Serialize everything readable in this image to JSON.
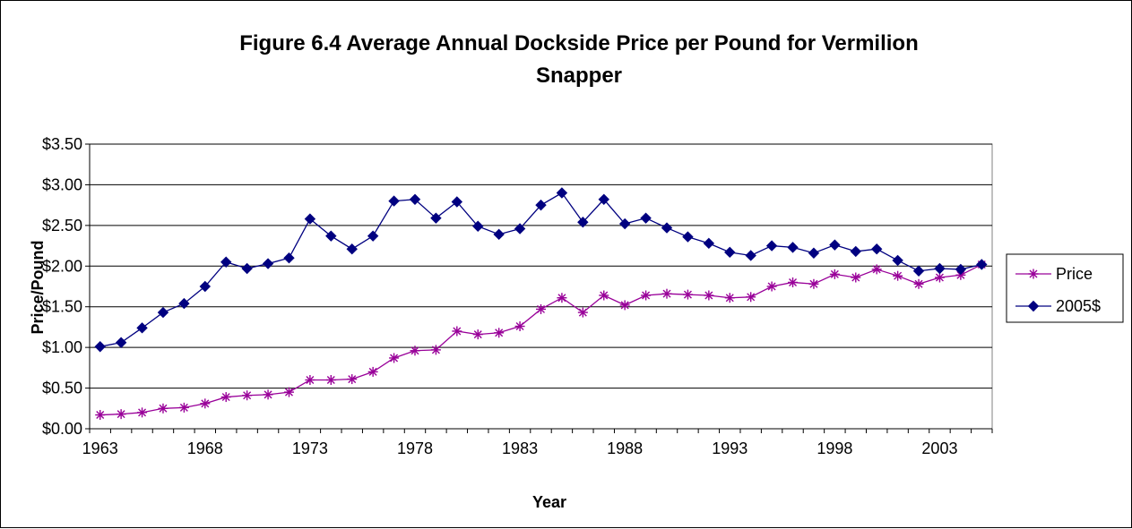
{
  "chart_data": {
    "type": "line",
    "title_line1": "Figure 6.4  Average Annual Dockside Price per Pound for Vermilion",
    "title_line2": "Snapper",
    "xlabel": "Year",
    "ylabel": "Price/Pound",
    "x_tick_labels": [
      "1963",
      "1968",
      "1973",
      "1978",
      "1983",
      "1988",
      "1993",
      "1998",
      "2003"
    ],
    "y_tick_labels": [
      "$0.00",
      "$0.50",
      "$1.00",
      "$1.50",
      "$2.00",
      "$2.50",
      "$3.00",
      "$3.50"
    ],
    "ylim": [
      0,
      3.5
    ],
    "xlim": [
      1963,
      2005
    ],
    "grid": "horizontal",
    "legend_position": "right",
    "x": [
      1963,
      1964,
      1965,
      1966,
      1967,
      1968,
      1969,
      1970,
      1971,
      1972,
      1973,
      1974,
      1975,
      1976,
      1977,
      1978,
      1979,
      1980,
      1981,
      1982,
      1983,
      1984,
      1985,
      1986,
      1987,
      1988,
      1989,
      1990,
      1991,
      1992,
      1993,
      1994,
      1995,
      1996,
      1997,
      1998,
      1999,
      2000,
      2001,
      2002,
      2003,
      2004,
      2005
    ],
    "series": [
      {
        "name": "Price",
        "color": "#990099",
        "marker": "asterisk",
        "values": [
          0.17,
          0.18,
          0.2,
          0.25,
          0.26,
          0.31,
          0.39,
          0.41,
          0.42,
          0.45,
          0.6,
          0.6,
          0.61,
          0.7,
          0.87,
          0.96,
          0.97,
          1.2,
          1.16,
          1.18,
          1.26,
          1.47,
          1.61,
          1.43,
          1.64,
          1.52,
          1.64,
          1.66,
          1.65,
          1.64,
          1.61,
          1.62,
          1.75,
          1.8,
          1.78,
          1.9,
          1.86,
          1.96,
          1.88,
          1.78,
          1.86,
          1.89,
          2.02
        ]
      },
      {
        "name": "2005$",
        "color": "#000080",
        "marker": "diamond",
        "values": [
          1.01,
          1.06,
          1.24,
          1.43,
          1.54,
          1.75,
          2.05,
          1.97,
          2.03,
          2.1,
          2.58,
          2.37,
          2.21,
          2.37,
          2.8,
          2.82,
          2.59,
          2.79,
          2.49,
          2.39,
          2.46,
          2.75,
          2.9,
          2.54,
          2.82,
          2.52,
          2.59,
          2.47,
          2.36,
          2.28,
          2.17,
          2.13,
          2.25,
          2.23,
          2.16,
          2.26,
          2.18,
          2.21,
          2.07,
          1.94,
          1.97,
          1.96,
          2.02
        ]
      }
    ]
  }
}
